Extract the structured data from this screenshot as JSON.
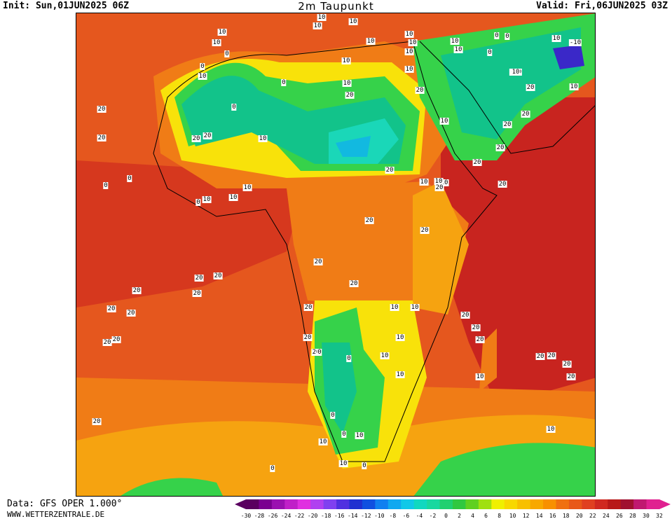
{
  "header": {
    "init": "Init: Sun,01JUN2025 06Z",
    "title": "2m Taupunkt",
    "valid": "Valid: Fri,06JUN2025 03Z"
  },
  "footer": {
    "data_source": "Data: GFS OPER 1.000°",
    "website": "WWW.WETTERZENTRALE.DE"
  },
  "map": {
    "region": "Africa",
    "colors": {
      "ocean_warm": "#e5571e",
      "ocean_hot": "#c8241f",
      "land_orange": "#f07c16",
      "land_light_orange": "#f6a310",
      "yellow": "#f8e20a",
      "light_green": "#36d24a",
      "green": "#12c38a",
      "teal": "#1ad7b8",
      "cyan": "#12b9e0",
      "blue_purple": "#3a28c8",
      "boundary": "#000000"
    },
    "contour_labels": [
      "10",
      "10",
      "10",
      "10",
      "10",
      "10",
      "10",
      "10",
      "10",
      "0",
      "0",
      "0",
      "0",
      "10",
      "10",
      "10",
      "10",
      "10",
      "-10",
      "-10",
      "0",
      "0",
      "0",
      "10",
      "10",
      "10",
      "20",
      "20",
      "20",
      "20",
      "0",
      "0",
      "0",
      "10",
      "10",
      "10",
      "10",
      "20",
      "20",
      "20",
      "20",
      "20",
      "20",
      "20",
      "20",
      "20",
      "20",
      "20",
      "20",
      "20",
      "20",
      "20",
      "20",
      "20",
      "20",
      "20",
      "20",
      "20",
      "20",
      "20",
      "20",
      "20",
      "20",
      "10",
      "10",
      "10",
      "10",
      "10",
      "10",
      "10",
      "10",
      "0",
      "0",
      "0",
      "0",
      "0",
      "0",
      "10",
      "10",
      "10",
      "10",
      "20",
      "20",
      "20",
      "20",
      "20",
      "20",
      "20",
      "10",
      "10",
      "10"
    ]
  },
  "scale": {
    "ticks": [
      "-30",
      "-28",
      "-26",
      "-24",
      "-22",
      "-20",
      "-18",
      "-16",
      "-14",
      "-12",
      "-10",
      "-8",
      "-6",
      "-4",
      "-2",
      "0",
      "2",
      "4",
      "6",
      "8",
      "10",
      "12",
      "14",
      "16",
      "18",
      "20",
      "22",
      "24",
      "26",
      "28",
      "30",
      "32"
    ],
    "colors": [
      "#5a0060",
      "#7a0090",
      "#9a10b0",
      "#c020c8",
      "#e030e0",
      "#b040f0",
      "#8040f0",
      "#5030e0",
      "#2030d0",
      "#1050e0",
      "#1080f0",
      "#10a8f0",
      "#10c8e8",
      "#10d8c0",
      "#18d8a0",
      "#20d070",
      "#30c840",
      "#60d020",
      "#a0e010",
      "#f0f000",
      "#f8d800",
      "#f8c000",
      "#f8a800",
      "#f89000",
      "#f07010",
      "#e85818",
      "#e04020",
      "#d02820",
      "#b81818",
      "#a01030",
      "#c01870",
      "#e02090"
    ]
  }
}
